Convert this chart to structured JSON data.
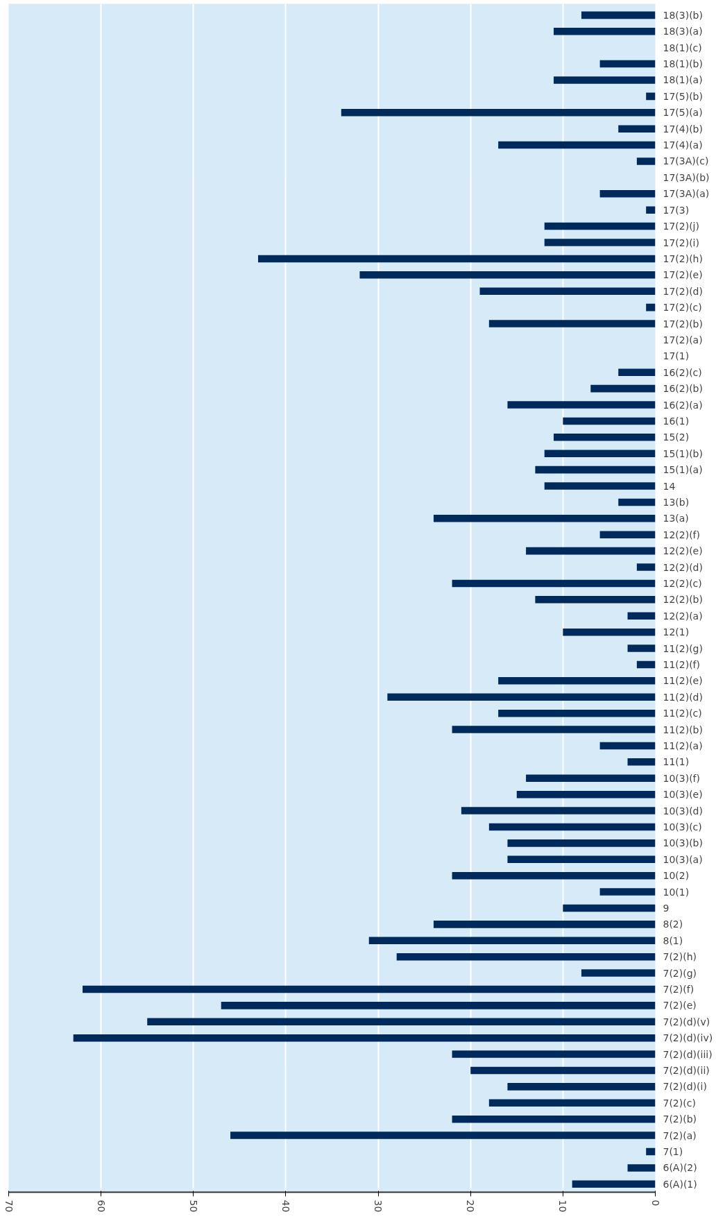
{
  "chart_data": {
    "type": "bar",
    "orientation": "horizontal",
    "grid": "x",
    "color": "#002a5c",
    "xlim": [
      70,
      0
    ],
    "xticks": [
      0,
      10,
      20,
      30,
      40,
      50,
      60,
      70
    ],
    "categories": [
      "18(3)(b)",
      "18(3)(a)",
      "18(1)(c)",
      "18(1)(b)",
      "18(1)(a)",
      "17(5)(b)",
      "17(5)(a)",
      "17(4)(b)",
      "17(4)(a)",
      "17(3A)(c)",
      "17(3A)(b)",
      "17(3A)(a)",
      "17(3)",
      "17(2)(j)",
      "17(2)(i)",
      "17(2)(h)",
      "17(2)(e)",
      "17(2)(d)",
      "17(2)(c)",
      "17(2)(b)",
      "17(2)(a)",
      "17(1)",
      "16(2)(c)",
      "16(2)(b)",
      "16(2)(a)",
      "16(1)",
      "15(2)",
      "15(1)(b)",
      "15(1)(a)",
      "14",
      "13(b)",
      "13(a)",
      "12(2)(f)",
      "12(2)(e)",
      "12(2)(d)",
      "12(2)(c)",
      "12(2)(b)",
      "12(2)(a)",
      "12(1)",
      "11(2)(g)",
      "11(2)(f)",
      "11(2)(e)",
      "11(2)(d)",
      "11(2)(c)",
      "11(2)(b)",
      "11(2)(a)",
      "11(1)",
      "10(3)(f)",
      "10(3)(e)",
      "10(3)(d)",
      "10(3)(c)",
      "10(3)(b)",
      "10(3)(a)",
      "10(2)",
      "10(1)",
      "9",
      "8(2)",
      "8(1)",
      "7(2)(h)",
      "7(2)(g)",
      "7(2)(f)",
      "7(2)(e)",
      "7(2)(d)(v)",
      "7(2)(d)(iv)",
      "7(2)(d)(iii)",
      "7(2)(d)(ii)",
      "7(2)(d)(i)",
      "7(2)(c)",
      "7(2)(b)",
      "7(2)(a)",
      "7(1)",
      "6(A)(2)",
      "6(A)(1)"
    ],
    "values": [
      8,
      11,
      0,
      6,
      11,
      1,
      34,
      4,
      17,
      2,
      0,
      6,
      1,
      12,
      12,
      43,
      32,
      19,
      1,
      18,
      0,
      0,
      4,
      7,
      16,
      10,
      11,
      12,
      13,
      12,
      4,
      24,
      6,
      14,
      2,
      22,
      13,
      3,
      10,
      3,
      2,
      17,
      29,
      17,
      22,
      6,
      3,
      14,
      15,
      21,
      18,
      16,
      16,
      22,
      6,
      10,
      24,
      31,
      28,
      8,
      62,
      47,
      55,
      63,
      22,
      20,
      16,
      18,
      22,
      46,
      1,
      3,
      9
    ]
  }
}
